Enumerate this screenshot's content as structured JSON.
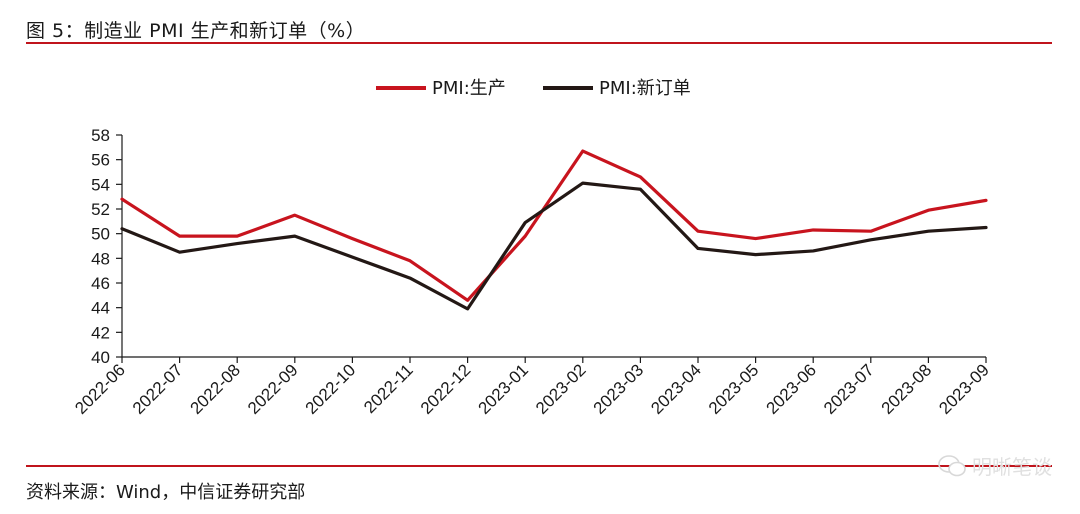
{
  "header": {
    "title": "图 5：制造业 PMI 生产和新订单（%）"
  },
  "footer": {
    "source": "资料来源：Wind，中信证券研究部",
    "watermark": "明晰笔谈"
  },
  "colors": {
    "accent_rule": "#c0141c"
  },
  "chart_data": {
    "type": "line",
    "title": "",
    "xlabel": "",
    "ylabel": "",
    "ylim": [
      40,
      58
    ],
    "yticks": [
      40,
      42,
      44,
      46,
      48,
      50,
      52,
      54,
      56,
      58
    ],
    "grid": false,
    "legend_position": "top-center",
    "categories": [
      "2022-06",
      "2022-07",
      "2022-08",
      "2022-09",
      "2022-10",
      "2022-11",
      "2022-12",
      "2023-01",
      "2023-02",
      "2023-03",
      "2023-04",
      "2023-05",
      "2023-06",
      "2023-07",
      "2023-08",
      "2023-09"
    ],
    "series": [
      {
        "name": "PMI:生产",
        "color": "#c8141e",
        "values": [
          52.8,
          49.8,
          49.8,
          51.5,
          49.6,
          47.8,
          44.6,
          49.8,
          56.7,
          54.6,
          50.2,
          49.6,
          50.3,
          50.2,
          51.9,
          52.7
        ]
      },
      {
        "name": "PMI:新订单",
        "color": "#231815",
        "values": [
          50.4,
          48.5,
          49.2,
          49.8,
          48.1,
          46.4,
          43.9,
          50.9,
          54.1,
          53.6,
          48.8,
          48.3,
          48.6,
          49.5,
          50.2,
          50.5
        ]
      }
    ]
  }
}
